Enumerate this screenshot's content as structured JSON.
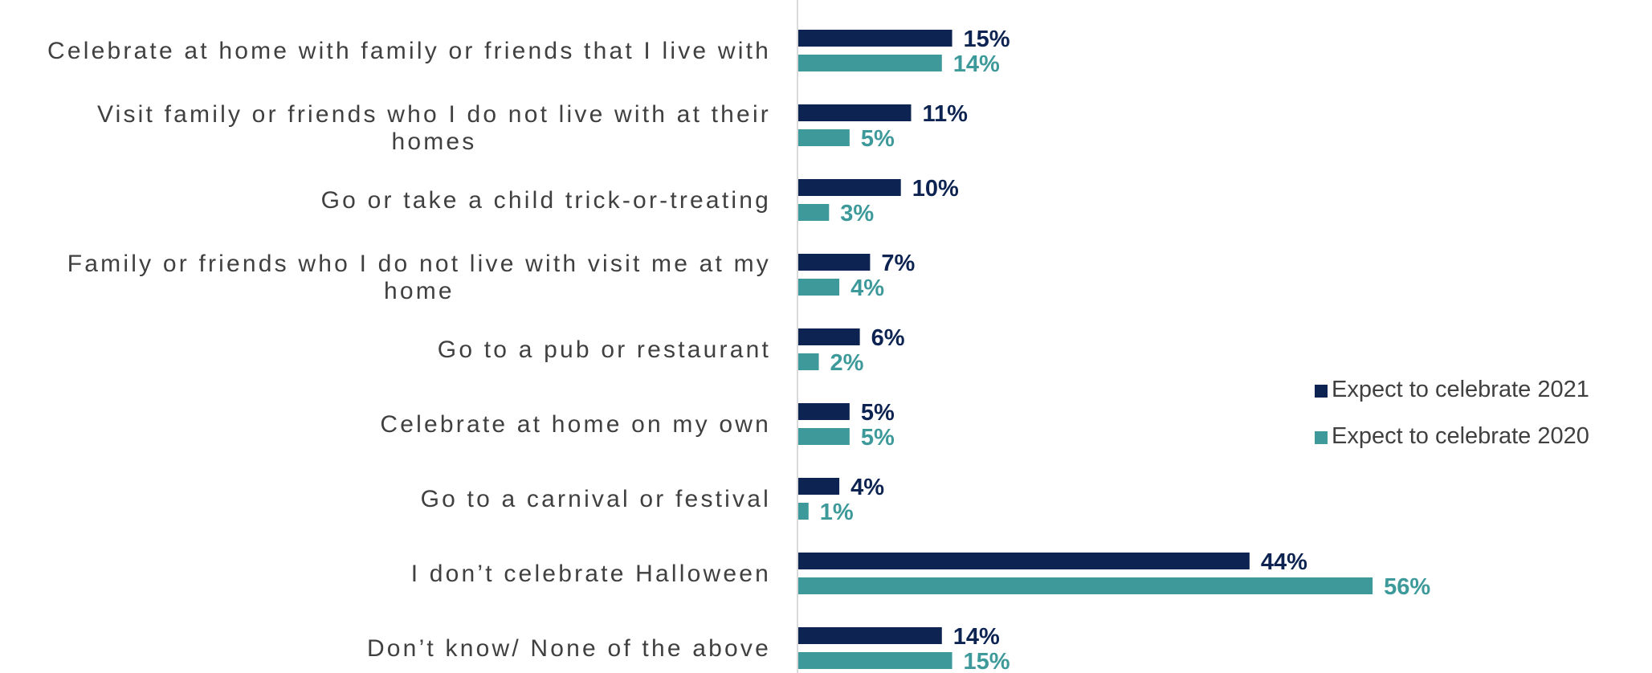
{
  "chart_data": {
    "type": "bar",
    "orientation": "horizontal",
    "categories": [
      [
        "Celebrate at home with family or friends that I live with"
      ],
      [
        "Visit family or friends who I do not live with at their",
        "homes"
      ],
      [
        "Go or take a child trick-or-treating"
      ],
      [
        "Family or friends who I do not live with visit me at my",
        "home"
      ],
      [
        "Go to a pub or restaurant"
      ],
      [
        "Celebrate at home on my own"
      ],
      [
        "Go to a carnival or festival"
      ],
      [
        "I don’t celebrate Halloween"
      ],
      [
        "Don’t know/ None of the above"
      ]
    ],
    "series": [
      {
        "name": "Expect to celebrate 2021",
        "color": "#0d2452",
        "values": [
          15,
          11,
          10,
          7,
          6,
          5,
          4,
          44,
          14
        ]
      },
      {
        "name": "Expect to celebrate 2020",
        "color": "#3e9a9a",
        "values": [
          14,
          5,
          3,
          4,
          2,
          5,
          1,
          56,
          15
        ]
      }
    ],
    "value_suffix": "%",
    "xlim": [
      0,
      60
    ],
    "grid": false,
    "legend_position": "right"
  }
}
